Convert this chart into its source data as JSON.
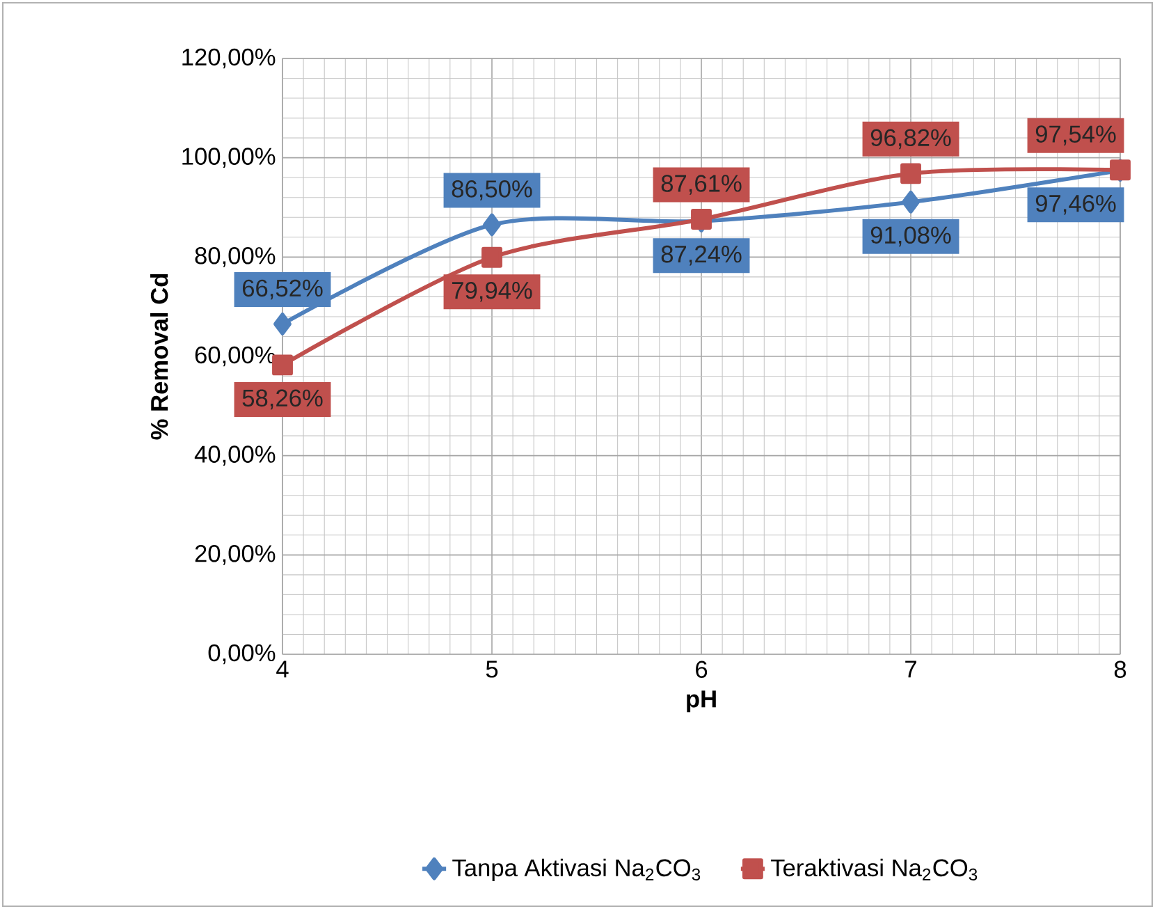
{
  "chart_data": {
    "type": "line",
    "xlabel": "pH",
    "ylabel": "% Removal Cd",
    "x": [
      4,
      5,
      6,
      7,
      8
    ],
    "series": [
      {
        "name": "Tanpa Aktivasi Na$_{2}$CO$_{3}$",
        "color": "#4f81bd",
        "marker": "diamond",
        "values": [
          66.52,
          86.5,
          87.24,
          91.08,
          97.46
        ],
        "value_labels": [
          "66,52%",
          "86,50%",
          "87,24%",
          "91,08%",
          "97,46%"
        ]
      },
      {
        "name": "Teraktivasi Na$_{2}$CO$_{3}$",
        "color": "#c0504d",
        "marker": "square",
        "values": [
          58.26,
          79.94,
          87.61,
          96.82,
          97.54
        ],
        "value_labels": [
          "58,26%",
          "79,94%",
          "87,61%",
          "96,82%",
          "97,54%"
        ]
      }
    ],
    "xlim": [
      4,
      8
    ],
    "xticks": [
      4,
      5,
      6,
      7,
      8
    ],
    "ylim": [
      0,
      120
    ],
    "yticks": [
      {
        "value": 0,
        "label": "0,00%"
      },
      {
        "value": 20,
        "label": "20,00%"
      },
      {
        "value": 40,
        "label": "40,00%"
      },
      {
        "value": 60,
        "label": "60,00%"
      },
      {
        "value": 80,
        "label": "80,00%"
      },
      {
        "value": 100,
        "label": "100,00%"
      },
      {
        "value": 120,
        "label": "120,00%"
      }
    ],
    "grid": true,
    "legend": "bottom",
    "line_style": "solid"
  }
}
